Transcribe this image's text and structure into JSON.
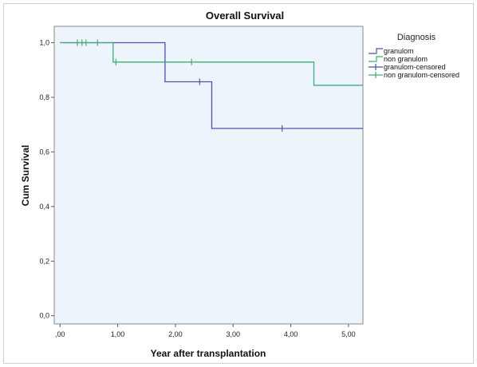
{
  "chart_data": {
    "type": "line",
    "step": true,
    "title": "Overall Survival",
    "xlabel": "Year after transplantation",
    "ylabel": "Cum Survival",
    "xlim": [
      -0.1,
      5.25
    ],
    "ylim": [
      -0.03,
      1.06
    ],
    "x_ticks": [
      0,
      1,
      2,
      3,
      4,
      5
    ],
    "x_tick_labels": [
      ",00",
      "1,00",
      "2,00",
      "3,00",
      "4,00",
      "5,00"
    ],
    "y_ticks": [
      0,
      0.2,
      0.4,
      0.6,
      0.8,
      1.0
    ],
    "y_tick_labels": [
      "0,0",
      "0,2",
      "0,4",
      "0,6",
      "0,8",
      "1,0"
    ],
    "grid": false,
    "legend": {
      "title": "Diagnosis",
      "placement": "right",
      "entries": [
        "granulom",
        "non granulom",
        "granulom-censored",
        "non granulom-censored"
      ]
    },
    "plot_background": "#eef4fb",
    "series": [
      {
        "name": "granulom",
        "color": "#4a55a8",
        "steps": [
          [
            0,
            1.0
          ],
          [
            1.82,
            0.857
          ],
          [
            2.63,
            0.686
          ],
          [
            5.25,
            0.686
          ]
        ],
        "censored": [
          [
            2.42,
            0.857
          ],
          [
            3.85,
            0.686
          ]
        ]
      },
      {
        "name": "non granulom",
        "color": "#3fae74",
        "steps": [
          [
            0,
            1.0
          ],
          [
            0.92,
            0.929
          ],
          [
            4.4,
            0.844
          ],
          [
            5.25,
            0.844
          ]
        ],
        "censored": [
          [
            0.3,
            1.0
          ],
          [
            0.38,
            1.0
          ],
          [
            0.45,
            1.0
          ],
          [
            0.65,
            1.0
          ],
          [
            0.97,
            0.929
          ],
          [
            2.28,
            0.929
          ]
        ]
      }
    ]
  }
}
